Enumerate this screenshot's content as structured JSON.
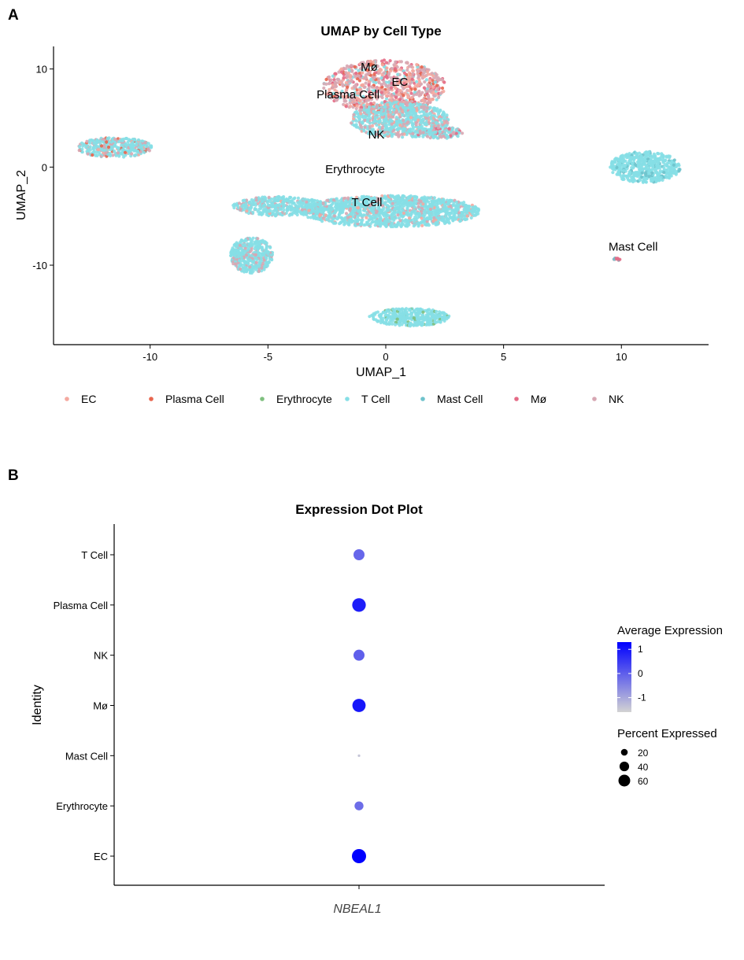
{
  "panel_a": {
    "letter": "A"
  },
  "panel_b": {
    "letter": "B"
  },
  "chart_data": [
    {
      "type": "scatter",
      "title": "UMAP by Cell Type",
      "xlabel": "UMAP_1",
      "ylabel": "UMAP_2",
      "xlim": [
        -14.1,
        13.7
      ],
      "ylim": [
        -18.1,
        12.3
      ],
      "xticks": [
        -10,
        -5,
        0,
        5,
        10
      ],
      "xtick_labels": [
        "-10",
        "-5",
        "0",
        "5",
        "10"
      ],
      "yticks": [
        10,
        0,
        -10
      ],
      "ytick_labels": [
        "10",
        "0",
        "-10"
      ],
      "legend": [
        {
          "name": "EC",
          "color": "#f4a9a0"
        },
        {
          "name": "Plasma Cell",
          "color": "#e8664f"
        },
        {
          "name": "Erythrocyte",
          "color": "#7fc07f"
        },
        {
          "name": "T Cell",
          "color": "#86dfe6"
        },
        {
          "name": "Mast Cell",
          "color": "#6fc3cc"
        },
        {
          "name": "Mø",
          "color": "#e46b86"
        },
        {
          "name": "NK",
          "color": "#d7a7b3"
        }
      ],
      "cluster_labels": [
        {
          "text": "Mø",
          "x": -0.7,
          "y": 9.8
        },
        {
          "text": "EC",
          "x": 0.6,
          "y": 8.3
        },
        {
          "text": "Plasma Cell",
          "x": -1.6,
          "y": 7.0
        },
        {
          "text": "NK",
          "x": -0.4,
          "y": 2.9
        },
        {
          "text": "Erythrocyte",
          "x": -1.3,
          "y": -0.6
        },
        {
          "text": "T Cell",
          "x": -0.8,
          "y": -4.0
        },
        {
          "text": "Mast Cell",
          "x": 10.5,
          "y": -8.5
        }
      ],
      "clusters": [
        {
          "name": "top-mixed",
          "cx": -0.05,
          "cy": 8.2,
          "rx": 2.6,
          "ry": 2.7,
          "n": 900,
          "mix": [
            [
              "NK",
              0.4
            ],
            [
              "EC",
              0.25
            ],
            [
              "Mø",
              0.15
            ],
            [
              "Plasma Cell",
              0.1
            ],
            [
              "T Cell",
              0.1
            ]
          ]
        },
        {
          "name": "lower-nk",
          "cx": 0.6,
          "cy": 4.8,
          "rx": 2.1,
          "ry": 1.8,
          "n": 700,
          "mix": [
            [
              "T Cell",
              0.7
            ],
            [
              "NK",
              0.2
            ],
            [
              "EC",
              0.1
            ]
          ]
        },
        {
          "name": "nk-tail",
          "cx": 2.3,
          "cy": 3.5,
          "rx": 1.0,
          "ry": 0.6,
          "n": 120,
          "mix": [
            [
              "T Cell",
              0.6
            ],
            [
              "NK",
              0.3
            ],
            [
              "Mø",
              0.1
            ]
          ]
        },
        {
          "name": "left-island",
          "cx": -11.5,
          "cy": 2.0,
          "rx": 1.6,
          "ry": 1.0,
          "n": 380,
          "mix": [
            [
              "T Cell",
              0.75
            ],
            [
              "NK",
              0.15
            ],
            [
              "EC",
              0.05
            ],
            [
              "Plasma Cell",
              0.05
            ]
          ]
        },
        {
          "name": "tcell-main",
          "cx": 0.2,
          "cy": -4.5,
          "rx": 3.8,
          "ry": 1.6,
          "n": 1400,
          "mix": [
            [
              "T Cell",
              0.85
            ],
            [
              "NK",
              0.1
            ],
            [
              "EC",
              0.05
            ]
          ]
        },
        {
          "name": "tcell-arm",
          "cx": -4.5,
          "cy": -4.0,
          "rx": 2.0,
          "ry": 1.0,
          "n": 400,
          "mix": [
            [
              "T Cell",
              0.8
            ],
            [
              "NK",
              0.15
            ],
            [
              "EC",
              0.05
            ]
          ]
        },
        {
          "name": "bottom-left",
          "cx": -5.7,
          "cy": -9.0,
          "rx": 0.9,
          "ry": 1.8,
          "n": 420,
          "mix": [
            [
              "T Cell",
              0.8
            ],
            [
              "NK",
              0.2
            ]
          ]
        },
        {
          "name": "bottom-mid",
          "cx": 1.0,
          "cy": -15.3,
          "rx": 1.7,
          "ry": 0.9,
          "n": 380,
          "mix": [
            [
              "T Cell",
              0.93
            ],
            [
              "Erythrocyte",
              0.07
            ]
          ]
        },
        {
          "name": "right-island",
          "cx": 11.0,
          "cy": 0.0,
          "rx": 1.5,
          "ry": 1.6,
          "n": 520,
          "mix": [
            [
              "T Cell",
              0.9
            ],
            [
              "Mast Cell",
              0.1
            ]
          ]
        },
        {
          "name": "mast-spot",
          "cx": 9.8,
          "cy": -9.4,
          "rx": 0.15,
          "ry": 0.15,
          "n": 12,
          "mix": [
            [
              "Mø",
              0.6
            ],
            [
              "Mast Cell",
              0.4
            ]
          ]
        }
      ]
    },
    {
      "type": "dot",
      "title": "Expression Dot Plot",
      "xlabel": "",
      "ylabel": "Identity",
      "gene": "NBEAL1",
      "identities": [
        "EC",
        "Erythrocyte",
        "Mast Cell",
        "Mø",
        "NK",
        "Plasma Cell",
        "T Cell"
      ],
      "percent_expressed": [
        63,
        25,
        2,
        55,
        38,
        58,
        38
      ],
      "avg_expression": [
        1.3,
        -0.2,
        -1.4,
        1.0,
        0.0,
        0.9,
        -0.1
      ],
      "color_range": [
        -1.6,
        1.3
      ],
      "color_low": "#d3d3d3",
      "color_high": "#0000ff",
      "colorbar_title": "Average Expression",
      "colorbar_ticks": [
        1,
        0,
        -1
      ],
      "colorbar_tick_labels": [
        "1",
        "0",
        "-1"
      ],
      "size_title": "Percent Expressed",
      "size_breaks": [
        20,
        40,
        60
      ],
      "size_break_labels": [
        "20",
        "40",
        "60"
      ]
    }
  ]
}
